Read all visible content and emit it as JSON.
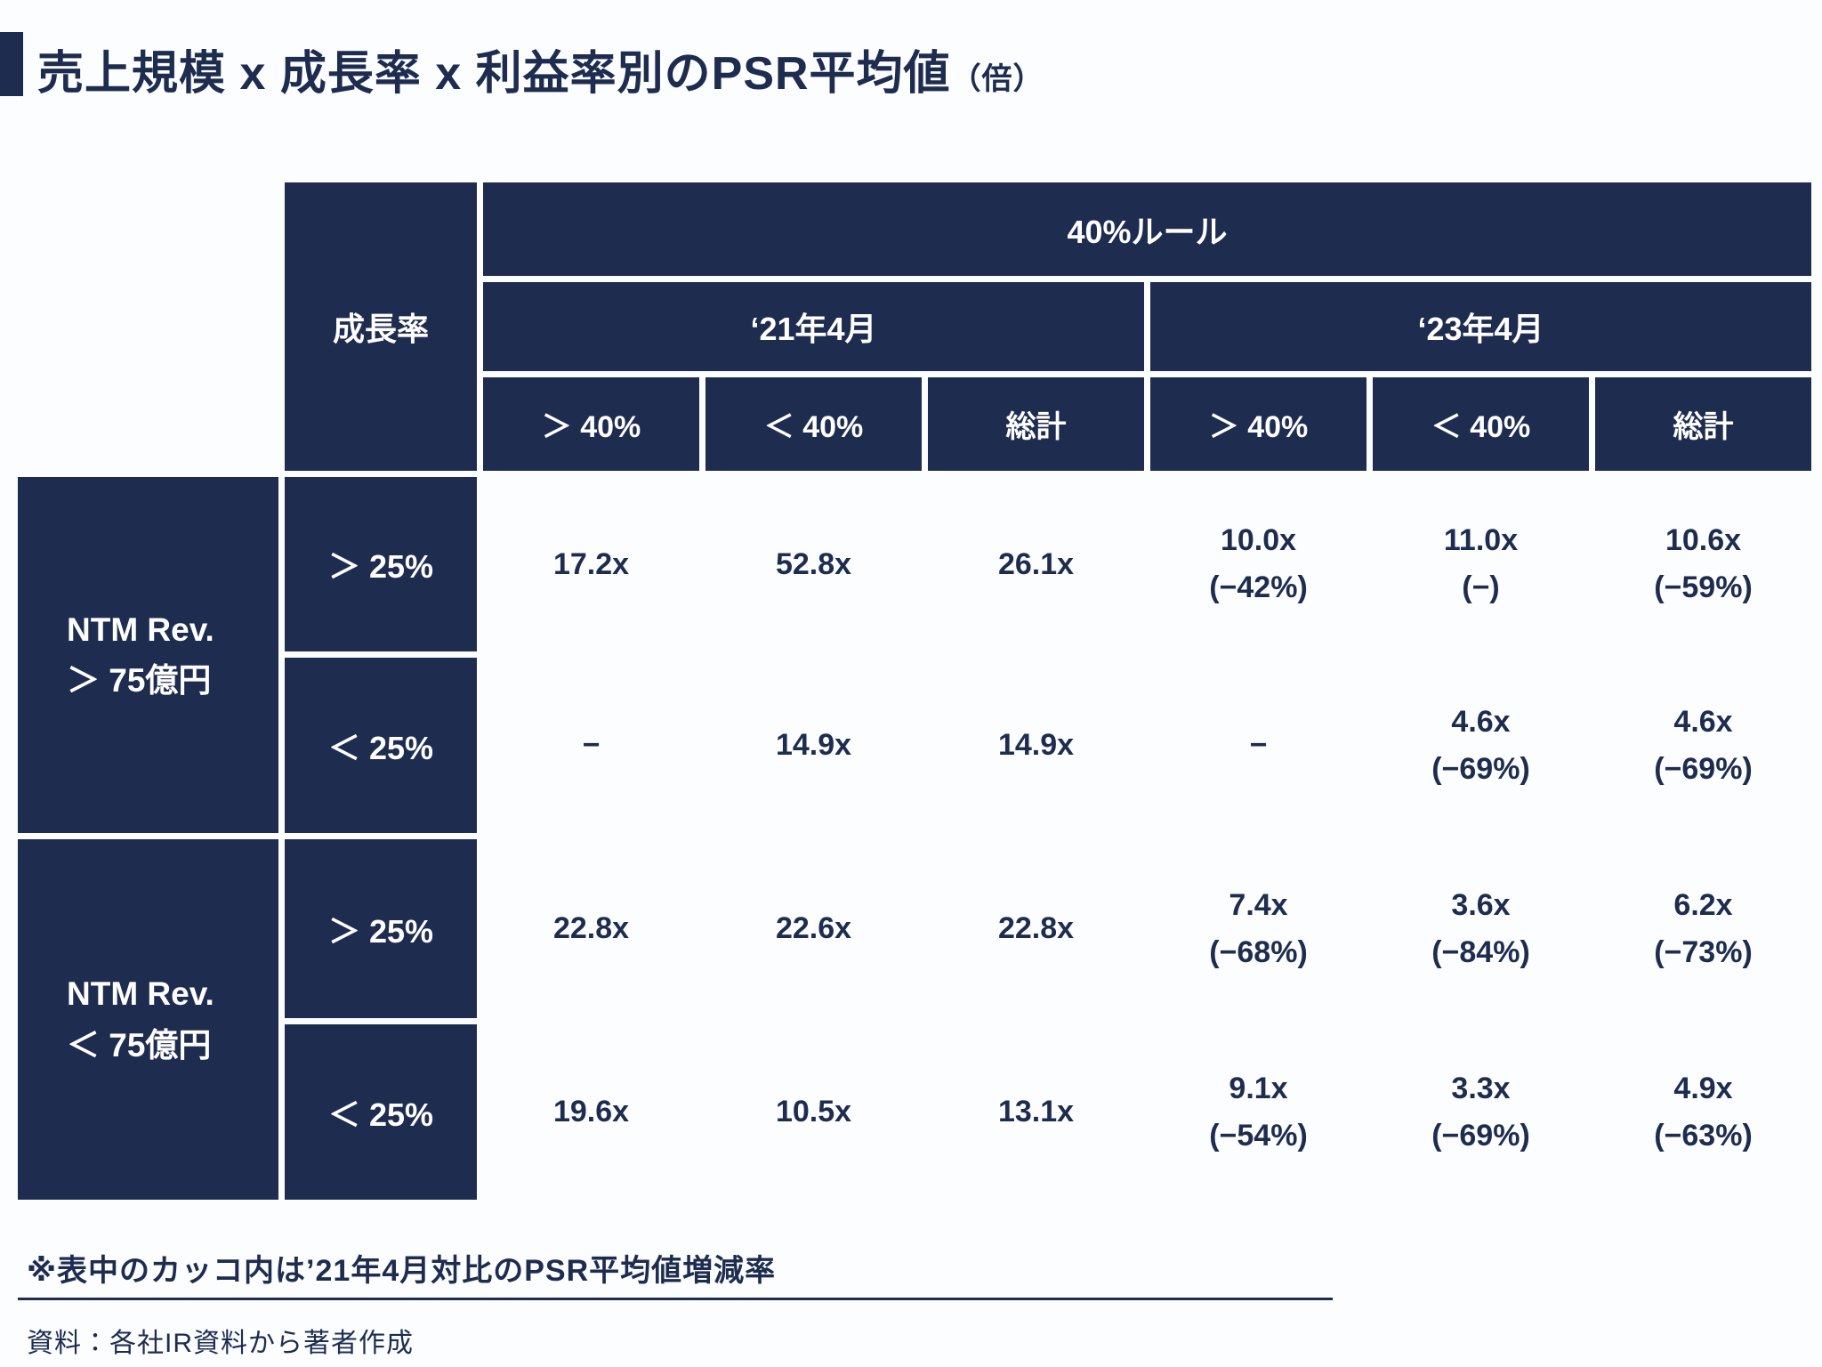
{
  "title": {
    "text": "売上規模 x 成長率 x 利益率別のPSR平均値",
    "unit": "（倍）"
  },
  "table": {
    "growth_header": "成長率",
    "rule_header": "40%ルール",
    "period_headers": [
      "‘21年4月",
      "‘23年4月"
    ],
    "metric_headers": [
      "＞ 40%",
      "＜ 40%",
      "総計",
      "＞ 40%",
      "＜ 40%",
      "総計"
    ],
    "row_groups": [
      {
        "label_line1": "NTM Rev.",
        "label_line2": "＞ 75億円",
        "rows": [
          {
            "growth": "＞ 25%",
            "cells": [
              [
                "17.2x"
              ],
              [
                "52.8x"
              ],
              [
                "26.1x"
              ],
              [
                "10.0x",
                "(−42%)"
              ],
              [
                "11.0x",
                "(−)"
              ],
              [
                "10.6x",
                "(−59%)"
              ]
            ]
          },
          {
            "growth": "＜ 25%",
            "cells": [
              [
                "−"
              ],
              [
                "14.9x"
              ],
              [
                "14.9x"
              ],
              [
                "−"
              ],
              [
                "4.6x",
                "(−69%)"
              ],
              [
                "4.6x",
                "(−69%)"
              ]
            ]
          }
        ]
      },
      {
        "label_line1": "NTM Rev.",
        "label_line2": "＜ 75億円",
        "rows": [
          {
            "growth": "＞ 25%",
            "cells": [
              [
                "22.8x"
              ],
              [
                "22.6x"
              ],
              [
                "22.8x"
              ],
              [
                "7.4x",
                "(−68%)"
              ],
              [
                "3.6x",
                "(−84%)"
              ],
              [
                "6.2x",
                "(−73%)"
              ]
            ]
          },
          {
            "growth": "＜ 25%",
            "cells": [
              [
                "19.6x"
              ],
              [
                "10.5x"
              ],
              [
                "13.1x"
              ],
              [
                "9.1x",
                "(−54%)"
              ],
              [
                "3.3x",
                "(−69%)"
              ],
              [
                "4.9x",
                "(−63%)"
              ]
            ]
          }
        ]
      }
    ]
  },
  "footnote": "※表中のカッコ内は’21年4月対比のPSR平均値増減率",
  "source": "資料：各社IR資料から著者作成",
  "colors": {
    "navy": "#1e2c50",
    "background": "#fcfdfe",
    "header_text": "#ffffff"
  },
  "chart_data": {
    "type": "table",
    "title": "売上規模 x 成長率 x 利益率別のPSR平均値（倍）",
    "column_group": "40%ルール",
    "periods": [
      "‘21年4月",
      "‘23年4月"
    ],
    "columns": [
      "‘21年4月 ＞40%",
      "‘21年4月 ＜40%",
      "‘21年4月 総計",
      "‘23年4月 ＞40%",
      "‘23年4月 ＜40%",
      "‘23年4月 総計"
    ],
    "rows": [
      {
        "revenue": "NTM Rev. ＞75億円",
        "growth": "＞25%",
        "values": [
          "17.2x",
          "52.8x",
          "26.1x",
          "10.0x (−42%)",
          "11.0x (−)",
          "10.6x (−59%)"
        ]
      },
      {
        "revenue": "NTM Rev. ＞75億円",
        "growth": "＜25%",
        "values": [
          "−",
          "14.9x",
          "14.9x",
          "−",
          "4.6x (−69%)",
          "4.6x (−69%)"
        ]
      },
      {
        "revenue": "NTM Rev. ＜75億円",
        "growth": "＞25%",
        "values": [
          "22.8x",
          "22.6x",
          "22.8x",
          "7.4x (−68%)",
          "3.6x (−84%)",
          "6.2x (−73%)"
        ]
      },
      {
        "revenue": "NTM Rev. ＜75億円",
        "growth": "＜25%",
        "values": [
          "19.6x",
          "10.5x",
          "13.1x",
          "9.1x (−54%)",
          "3.3x (−69%)",
          "4.9x (−63%)"
        ]
      }
    ],
    "note": "カッコ内は’21年4月対比のPSR平均値増減率"
  }
}
